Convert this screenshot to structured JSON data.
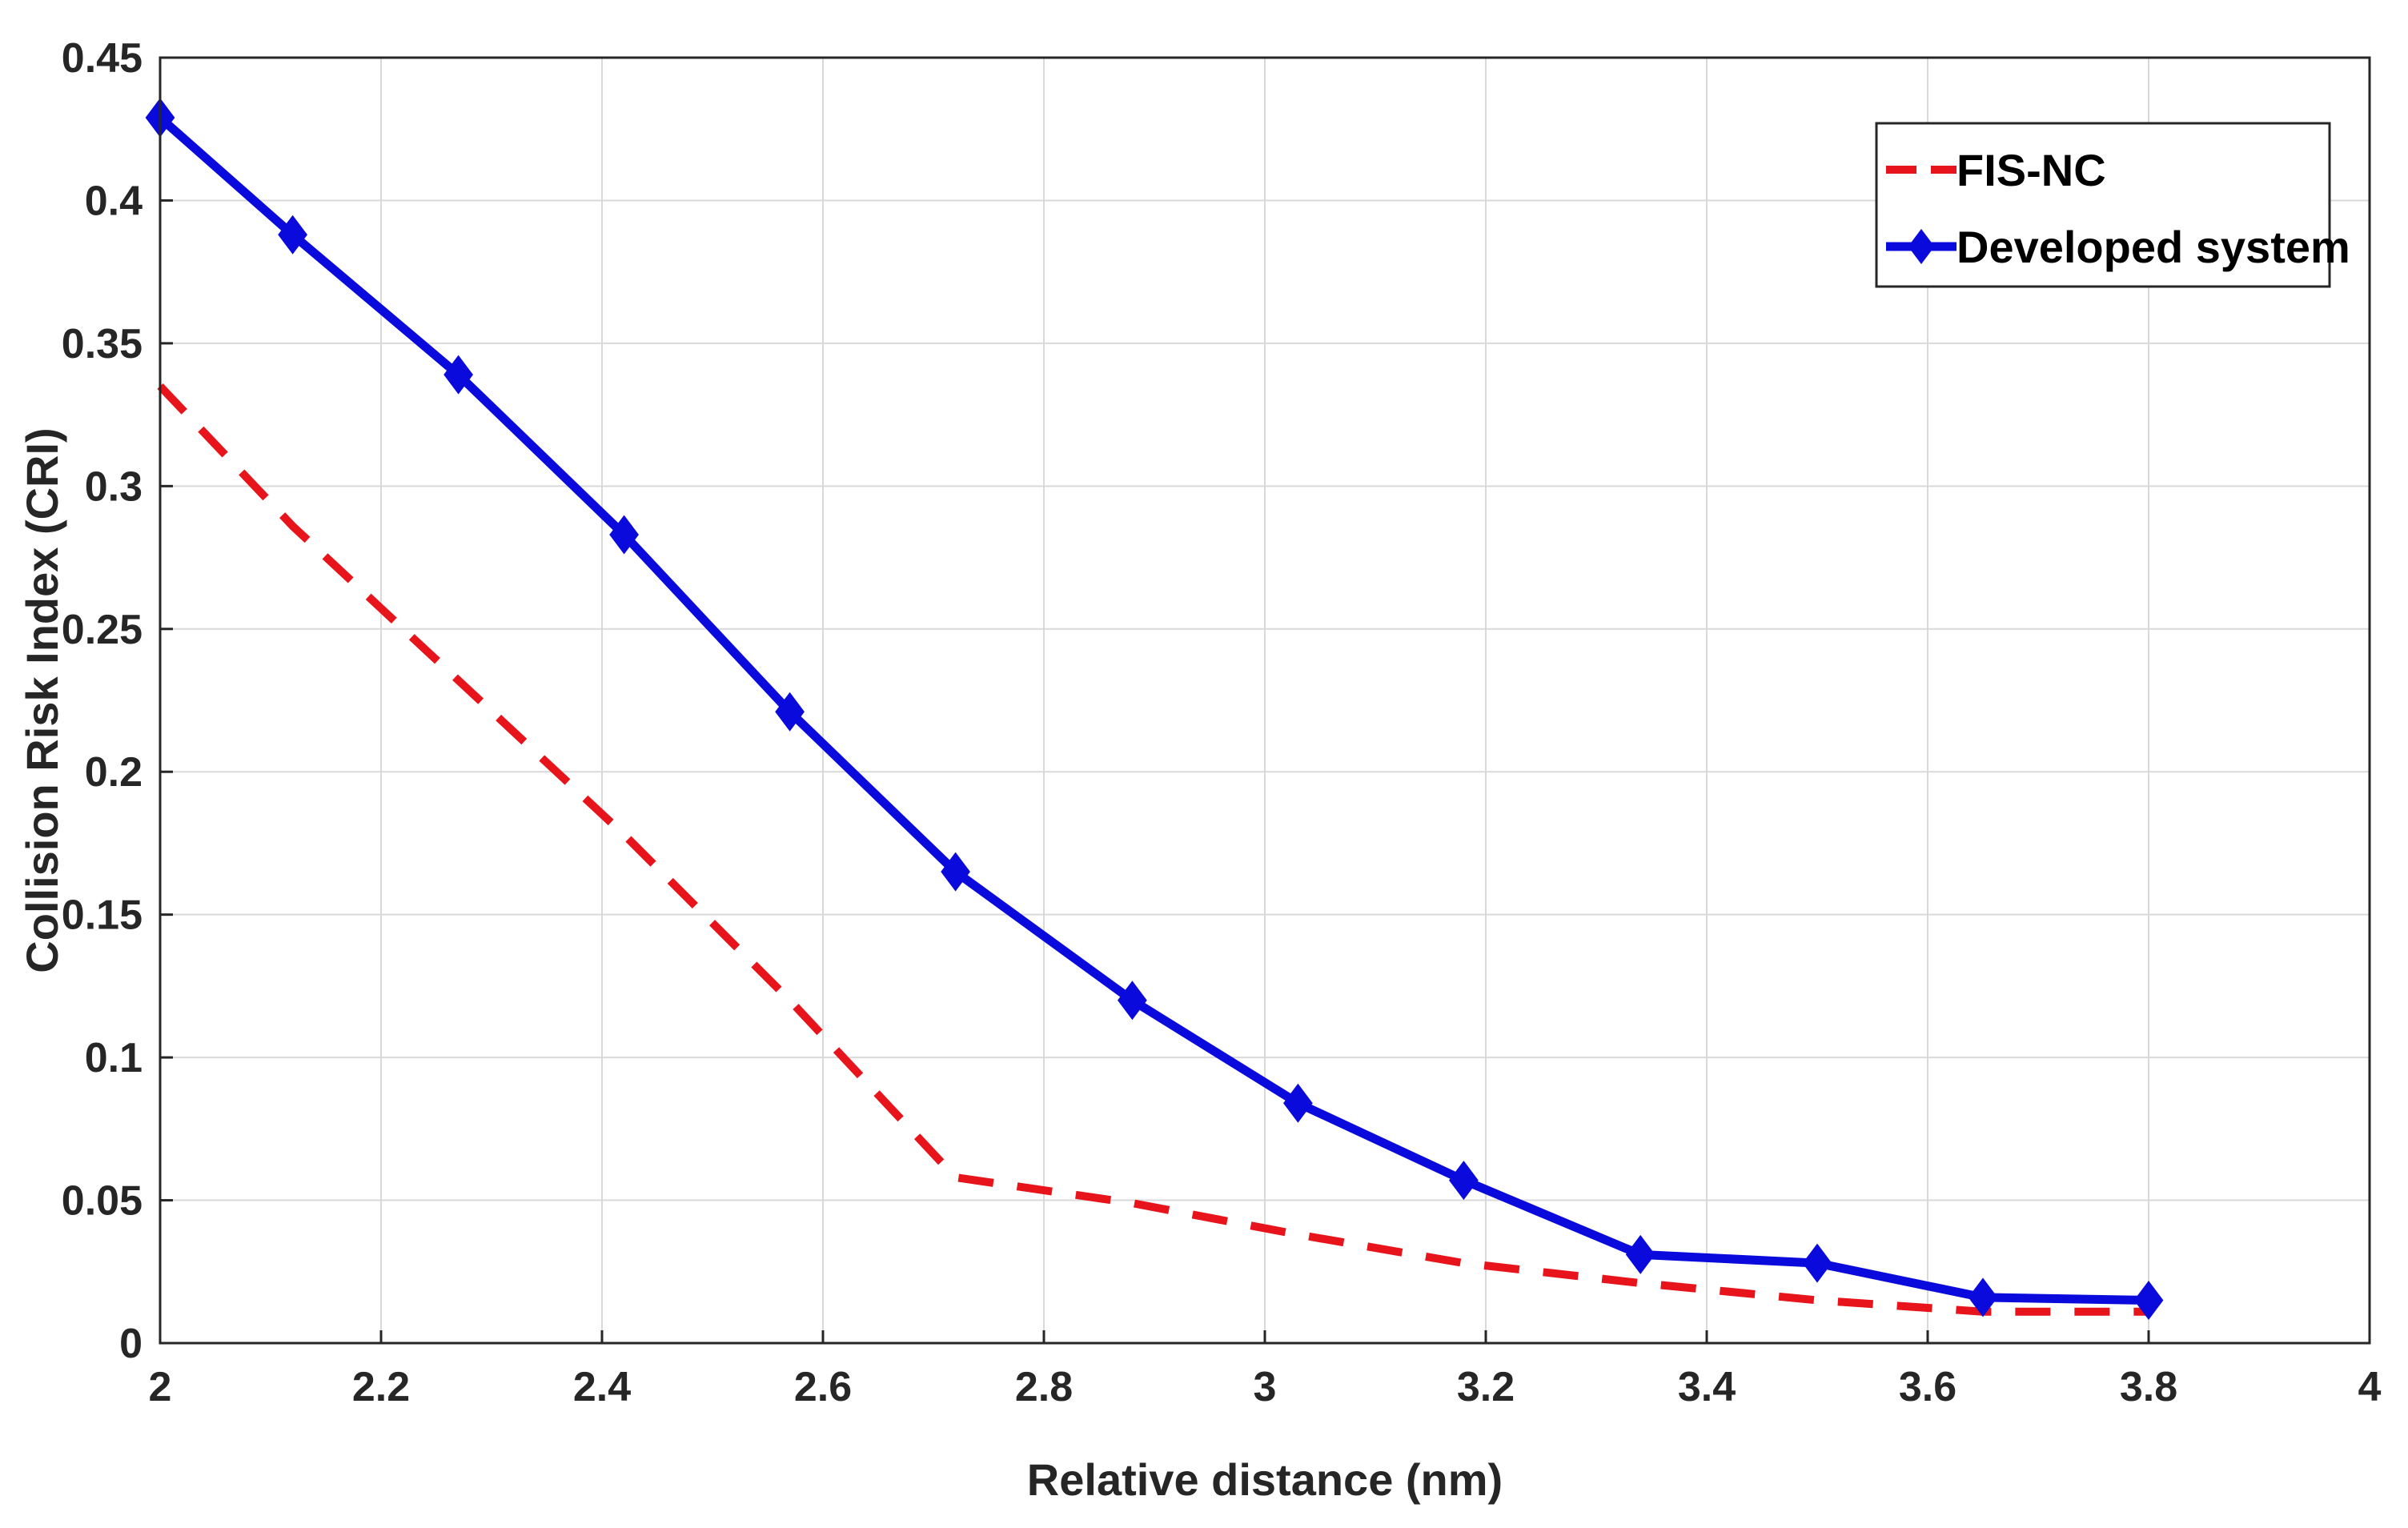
{
  "chart_data": {
    "type": "line",
    "xlabel": "Relative distance (nm)",
    "ylabel": "Collision Risk Index (CRI)",
    "xlim": [
      2,
      4
    ],
    "ylim": [
      0,
      0.45
    ],
    "x_ticks": [
      "2",
      "2.2",
      "2.4",
      "2.6",
      "2.8",
      "3",
      "3.2",
      "3.4",
      "3.6",
      "3.8",
      "4"
    ],
    "y_ticks": [
      "0",
      "0.05",
      "0.1",
      "0.15",
      "0.2",
      "0.25",
      "0.3",
      "0.35",
      "0.4",
      "0.45"
    ],
    "grid": true,
    "legend_position": "top-right",
    "series": [
      {
        "name": "FIS-NC",
        "color": "#e8141b",
        "style": "dashed",
        "x": [
          2.0,
          2.12,
          2.27,
          2.42,
          2.57,
          2.72,
          2.88,
          3.03,
          3.18,
          3.34,
          3.5,
          3.65,
          3.8
        ],
        "y": [
          0.335,
          0.286,
          0.232,
          0.178,
          0.12,
          0.058,
          0.049,
          0.038,
          0.028,
          0.021,
          0.015,
          0.011,
          0.011
        ]
      },
      {
        "name": "Developed system",
        "color": "#0a0adc",
        "style": "solid",
        "marker": "diamond",
        "x": [
          2.0,
          2.12,
          2.27,
          2.42,
          2.57,
          2.72,
          2.88,
          3.03,
          3.18,
          3.34,
          3.5,
          3.65,
          3.8
        ],
        "y": [
          0.429,
          0.388,
          0.339,
          0.283,
          0.221,
          0.165,
          0.12,
          0.084,
          0.057,
          0.031,
          0.028,
          0.016,
          0.015
        ]
      }
    ]
  }
}
